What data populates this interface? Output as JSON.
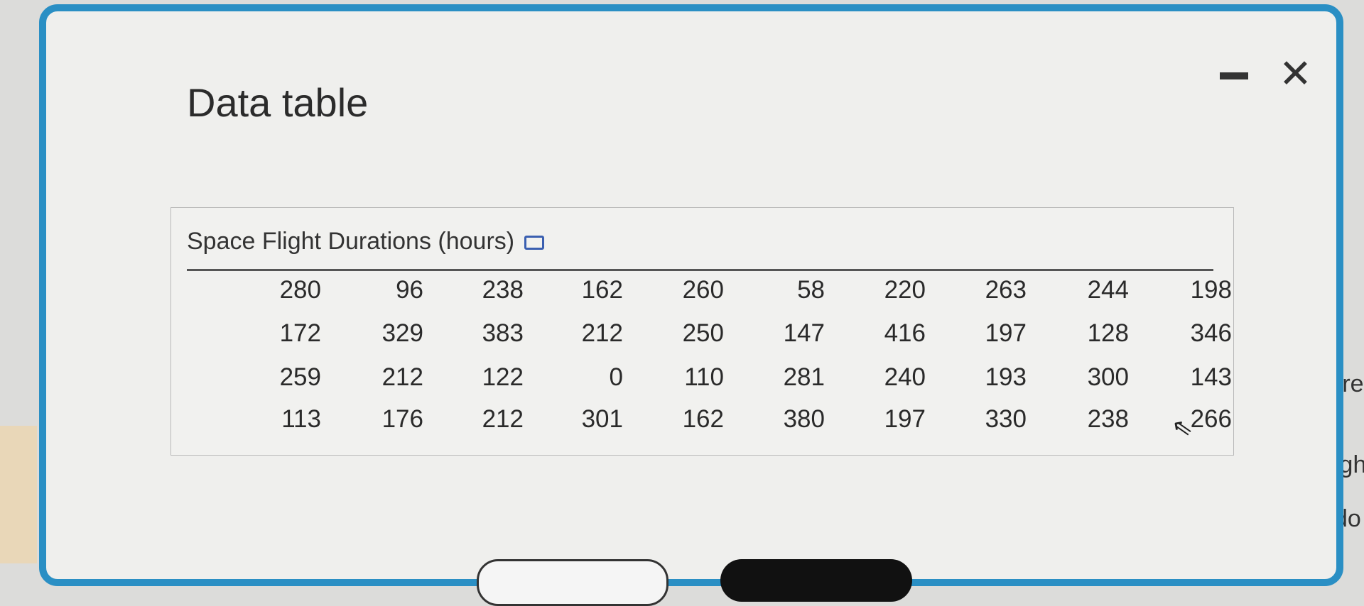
{
  "dialog": {
    "title": "Data table",
    "minimize_icon": "minimize-icon",
    "close_icon": "close-icon",
    "close_glyph": "✕"
  },
  "table": {
    "caption": "Space Flight Durations (hours)",
    "expand_icon": "expand-icon",
    "rows": [
      [
        "280",
        "96",
        "238",
        "162",
        "260",
        "58",
        "220",
        "263",
        "244",
        "198"
      ],
      [
        "172",
        "329",
        "383",
        "212",
        "250",
        "147",
        "416",
        "197",
        "128",
        "346"
      ],
      [
        "259",
        "212",
        "122",
        "0",
        "110",
        "281",
        "240",
        "193",
        "300",
        "143"
      ],
      [
        "113",
        "176",
        "212",
        "301",
        "162",
        "380",
        "197",
        "330",
        "238",
        "266"
      ]
    ]
  },
  "background_fragments": [
    "rre",
    "igh",
    "do"
  ],
  "colors": {
    "dialog_border": "#2a8fc4",
    "expand_icon": "#3a5fb0"
  }
}
